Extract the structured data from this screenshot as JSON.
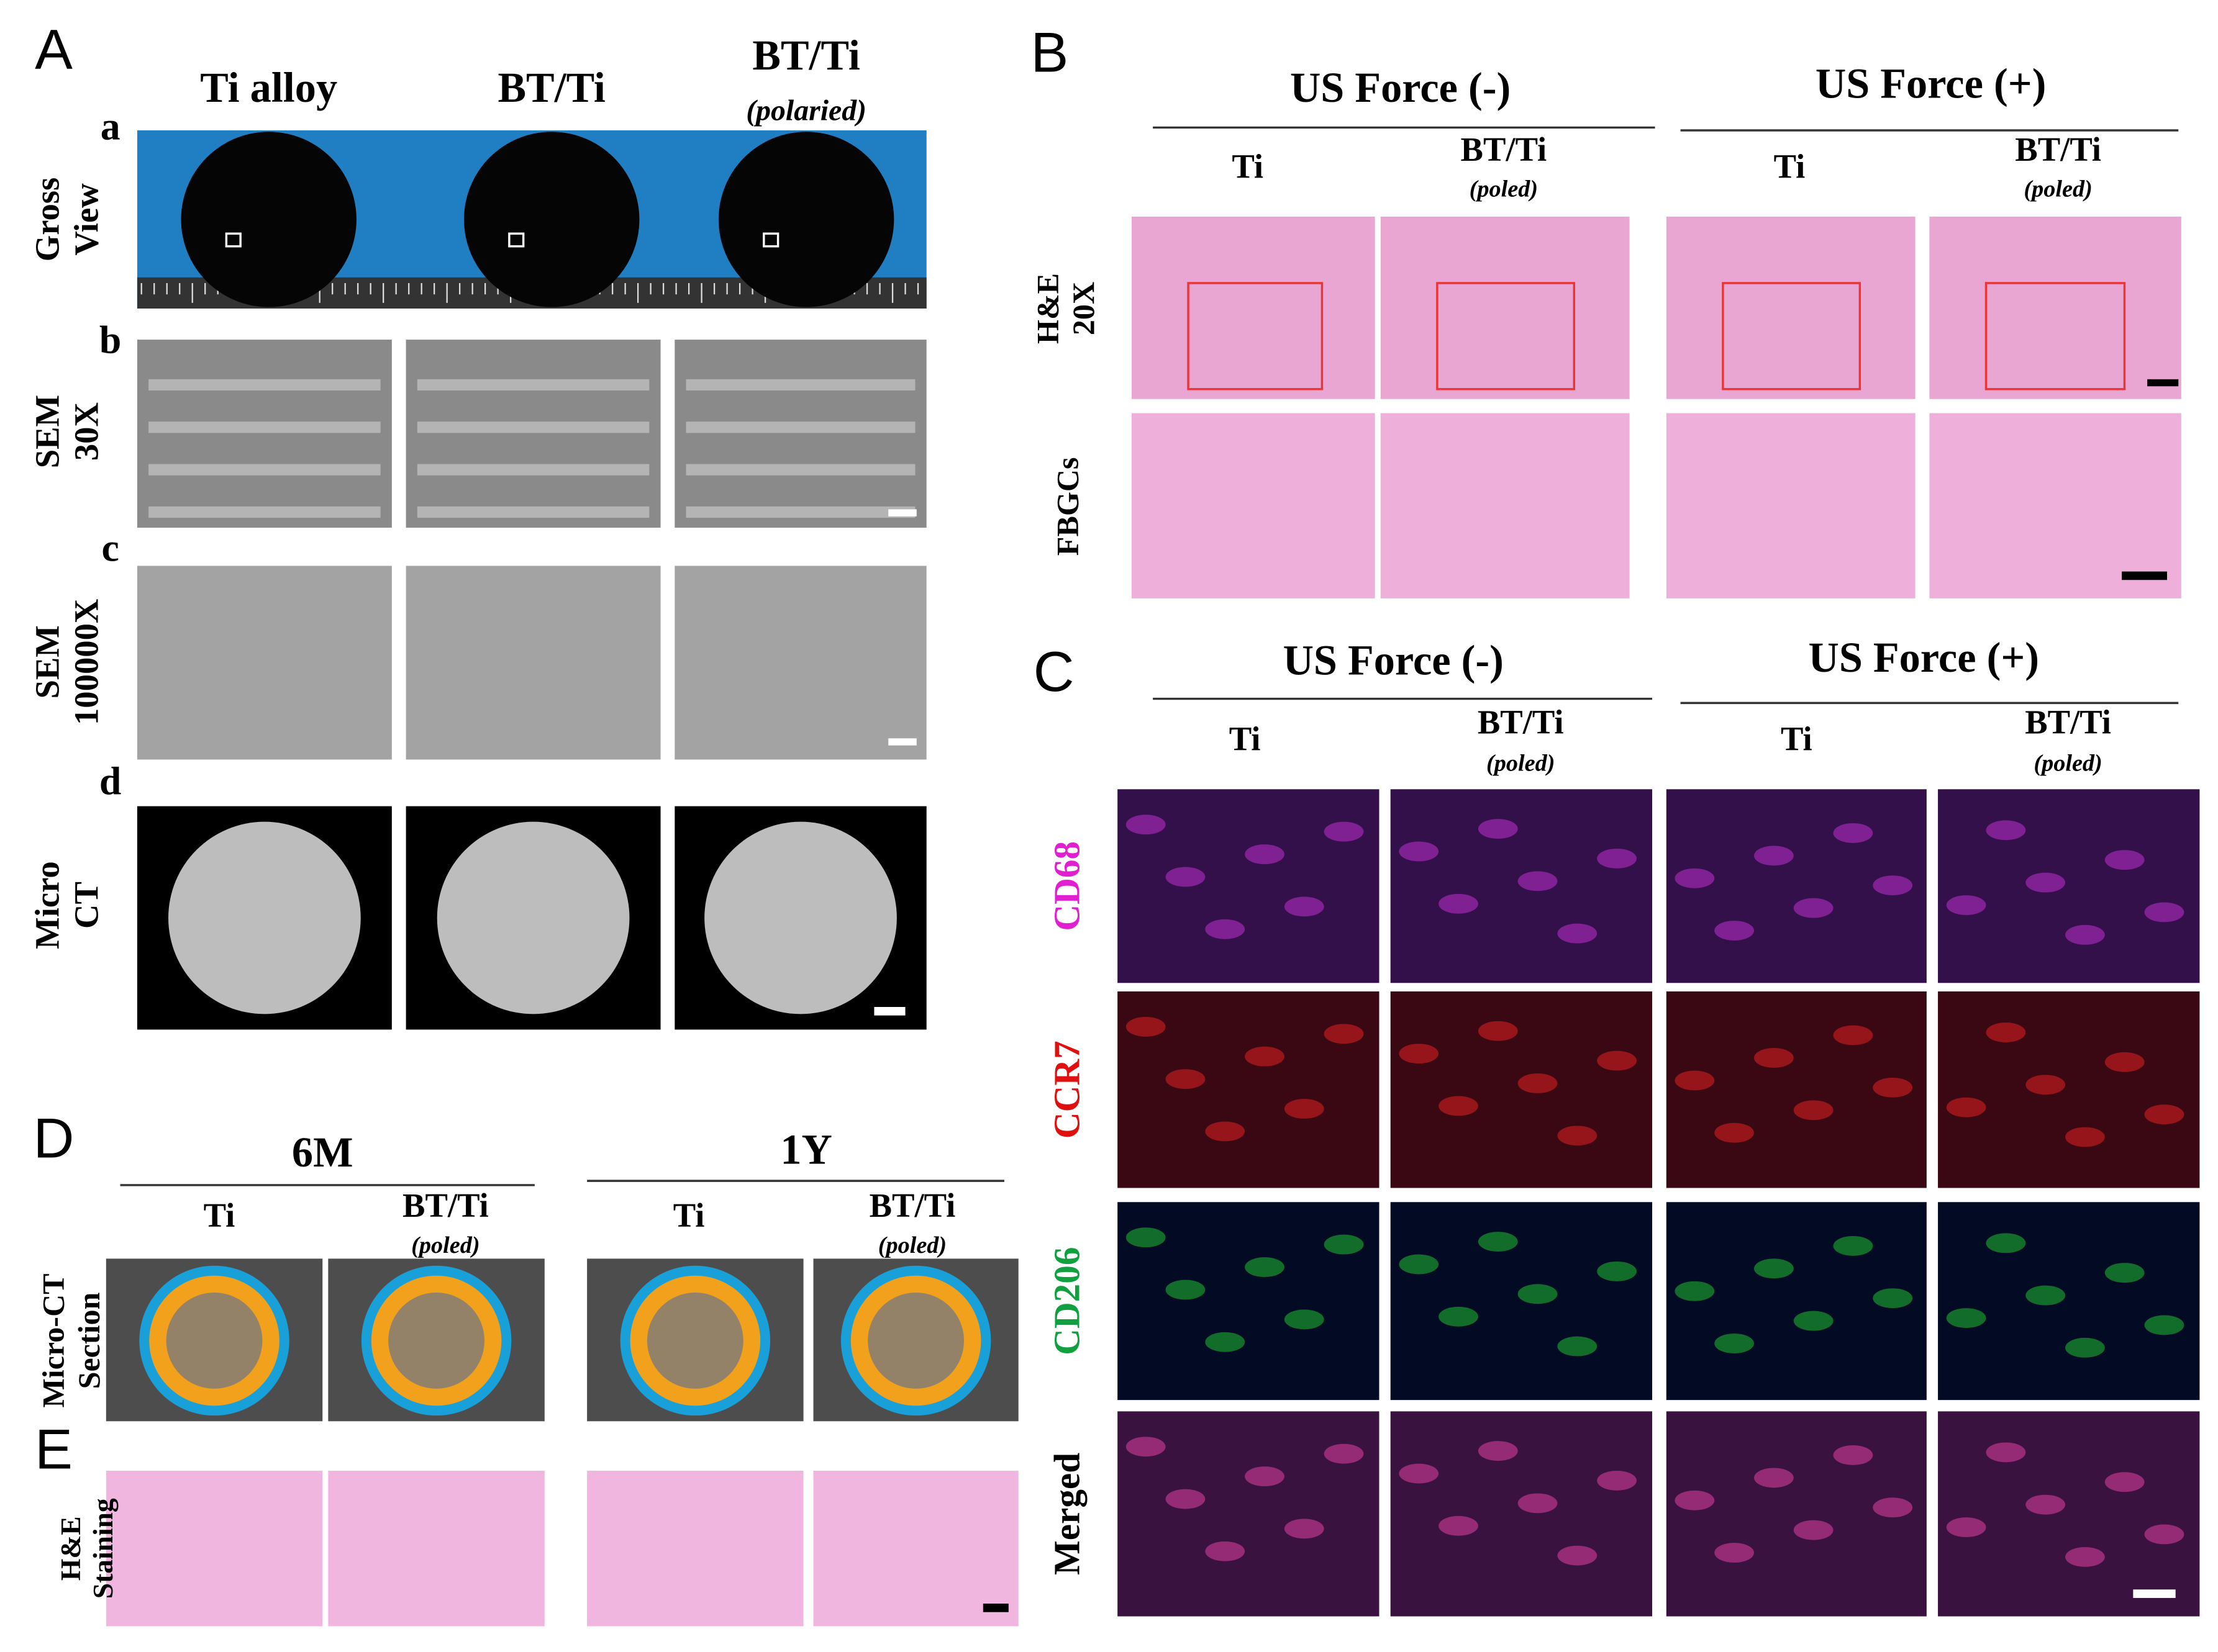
{
  "panel_a": {
    "label": "A",
    "columns": [
      {
        "title": "Ti alloy"
      },
      {
        "title": "BT/Ti"
      },
      {
        "title": "BT/Ti",
        "note": "(polaried)"
      }
    ],
    "rows": [
      {
        "letter": "a",
        "label": [
          "Gross",
          "View"
        ]
      },
      {
        "letter": "b",
        "label": [
          "SEM",
          "30X"
        ]
      },
      {
        "letter": "c",
        "label": [
          "SEM",
          "100000X"
        ]
      },
      {
        "letter": "d",
        "label": [
          "Micro",
          "CT"
        ]
      }
    ]
  },
  "panel_b": {
    "label": "B",
    "groups": [
      "US  Force (-)",
      "US  Force (+)"
    ],
    "columns": [
      {
        "title": "Ti"
      },
      {
        "title": "BT/Ti",
        "note": "(poled)"
      },
      {
        "title": "Ti"
      },
      {
        "title": "BT/Ti",
        "note": "(poled)"
      }
    ],
    "rows": [
      {
        "label": [
          "H&E",
          "20X"
        ]
      },
      {
        "label": [
          "FBGCs"
        ]
      }
    ]
  },
  "panel_c": {
    "label": "C",
    "groups": [
      "US  Force (-)",
      "US  Force (+)"
    ],
    "columns": [
      {
        "title": "Ti"
      },
      {
        "title": "BT/Ti",
        "note": "(poled)"
      },
      {
        "title": "Ti"
      },
      {
        "title": "BT/Ti",
        "note": "(poled)"
      }
    ],
    "rows": [
      {
        "label": "CD68"
      },
      {
        "label": "CCR7"
      },
      {
        "label": "CD206"
      },
      {
        "label": "Merged"
      }
    ]
  },
  "panel_d": {
    "label": "D",
    "groups": [
      "6M",
      "1Y"
    ],
    "columns": [
      {
        "title": "Ti"
      },
      {
        "title": "BT/Ti",
        "note": "(poled)"
      },
      {
        "title": "Ti"
      },
      {
        "title": "BT/Ti",
        "note": "(poled)"
      }
    ],
    "row_label": [
      "Micro-CT",
      "Section"
    ]
  },
  "panel_e": {
    "label": "E",
    "row_label": [
      "H&E",
      "Staining"
    ]
  }
}
